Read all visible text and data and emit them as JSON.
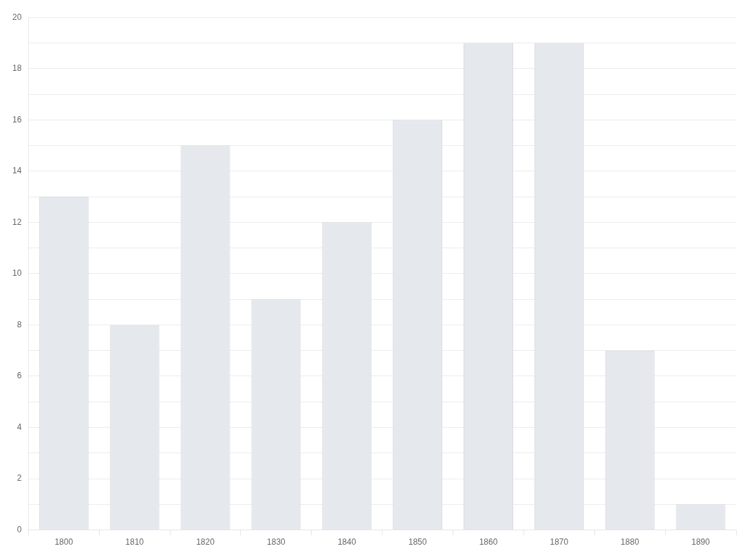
{
  "chart_data": {
    "type": "bar",
    "categories": [
      "1800",
      "1810",
      "1820",
      "1830",
      "1840",
      "1850",
      "1860",
      "1870",
      "1880",
      "1890"
    ],
    "values": [
      13,
      8,
      15,
      9,
      12,
      16,
      19,
      19,
      7,
      1
    ],
    "color": "#e5e8ec",
    "ylim": [
      0,
      20
    ],
    "yticks": [
      0,
      {
        "value": 1,
        "label": null
      },
      2,
      {
        "value": 3,
        "label": null
      },
      4,
      {
        "value": 5,
        "label": null
      },
      6,
      {
        "value": 7,
        "label": null
      },
      8,
      {
        "value": 9,
        "label": null
      },
      10,
      {
        "value": 11,
        "label": null
      },
      12,
      {
        "value": 13,
        "label": null
      },
      14,
      {
        "value": 15,
        "label": null
      },
      16,
      {
        "value": 17,
        "label": null
      },
      18,
      {
        "value": 19,
        "label": null
      },
      20
    ],
    "grid": "y",
    "legend": false
  }
}
